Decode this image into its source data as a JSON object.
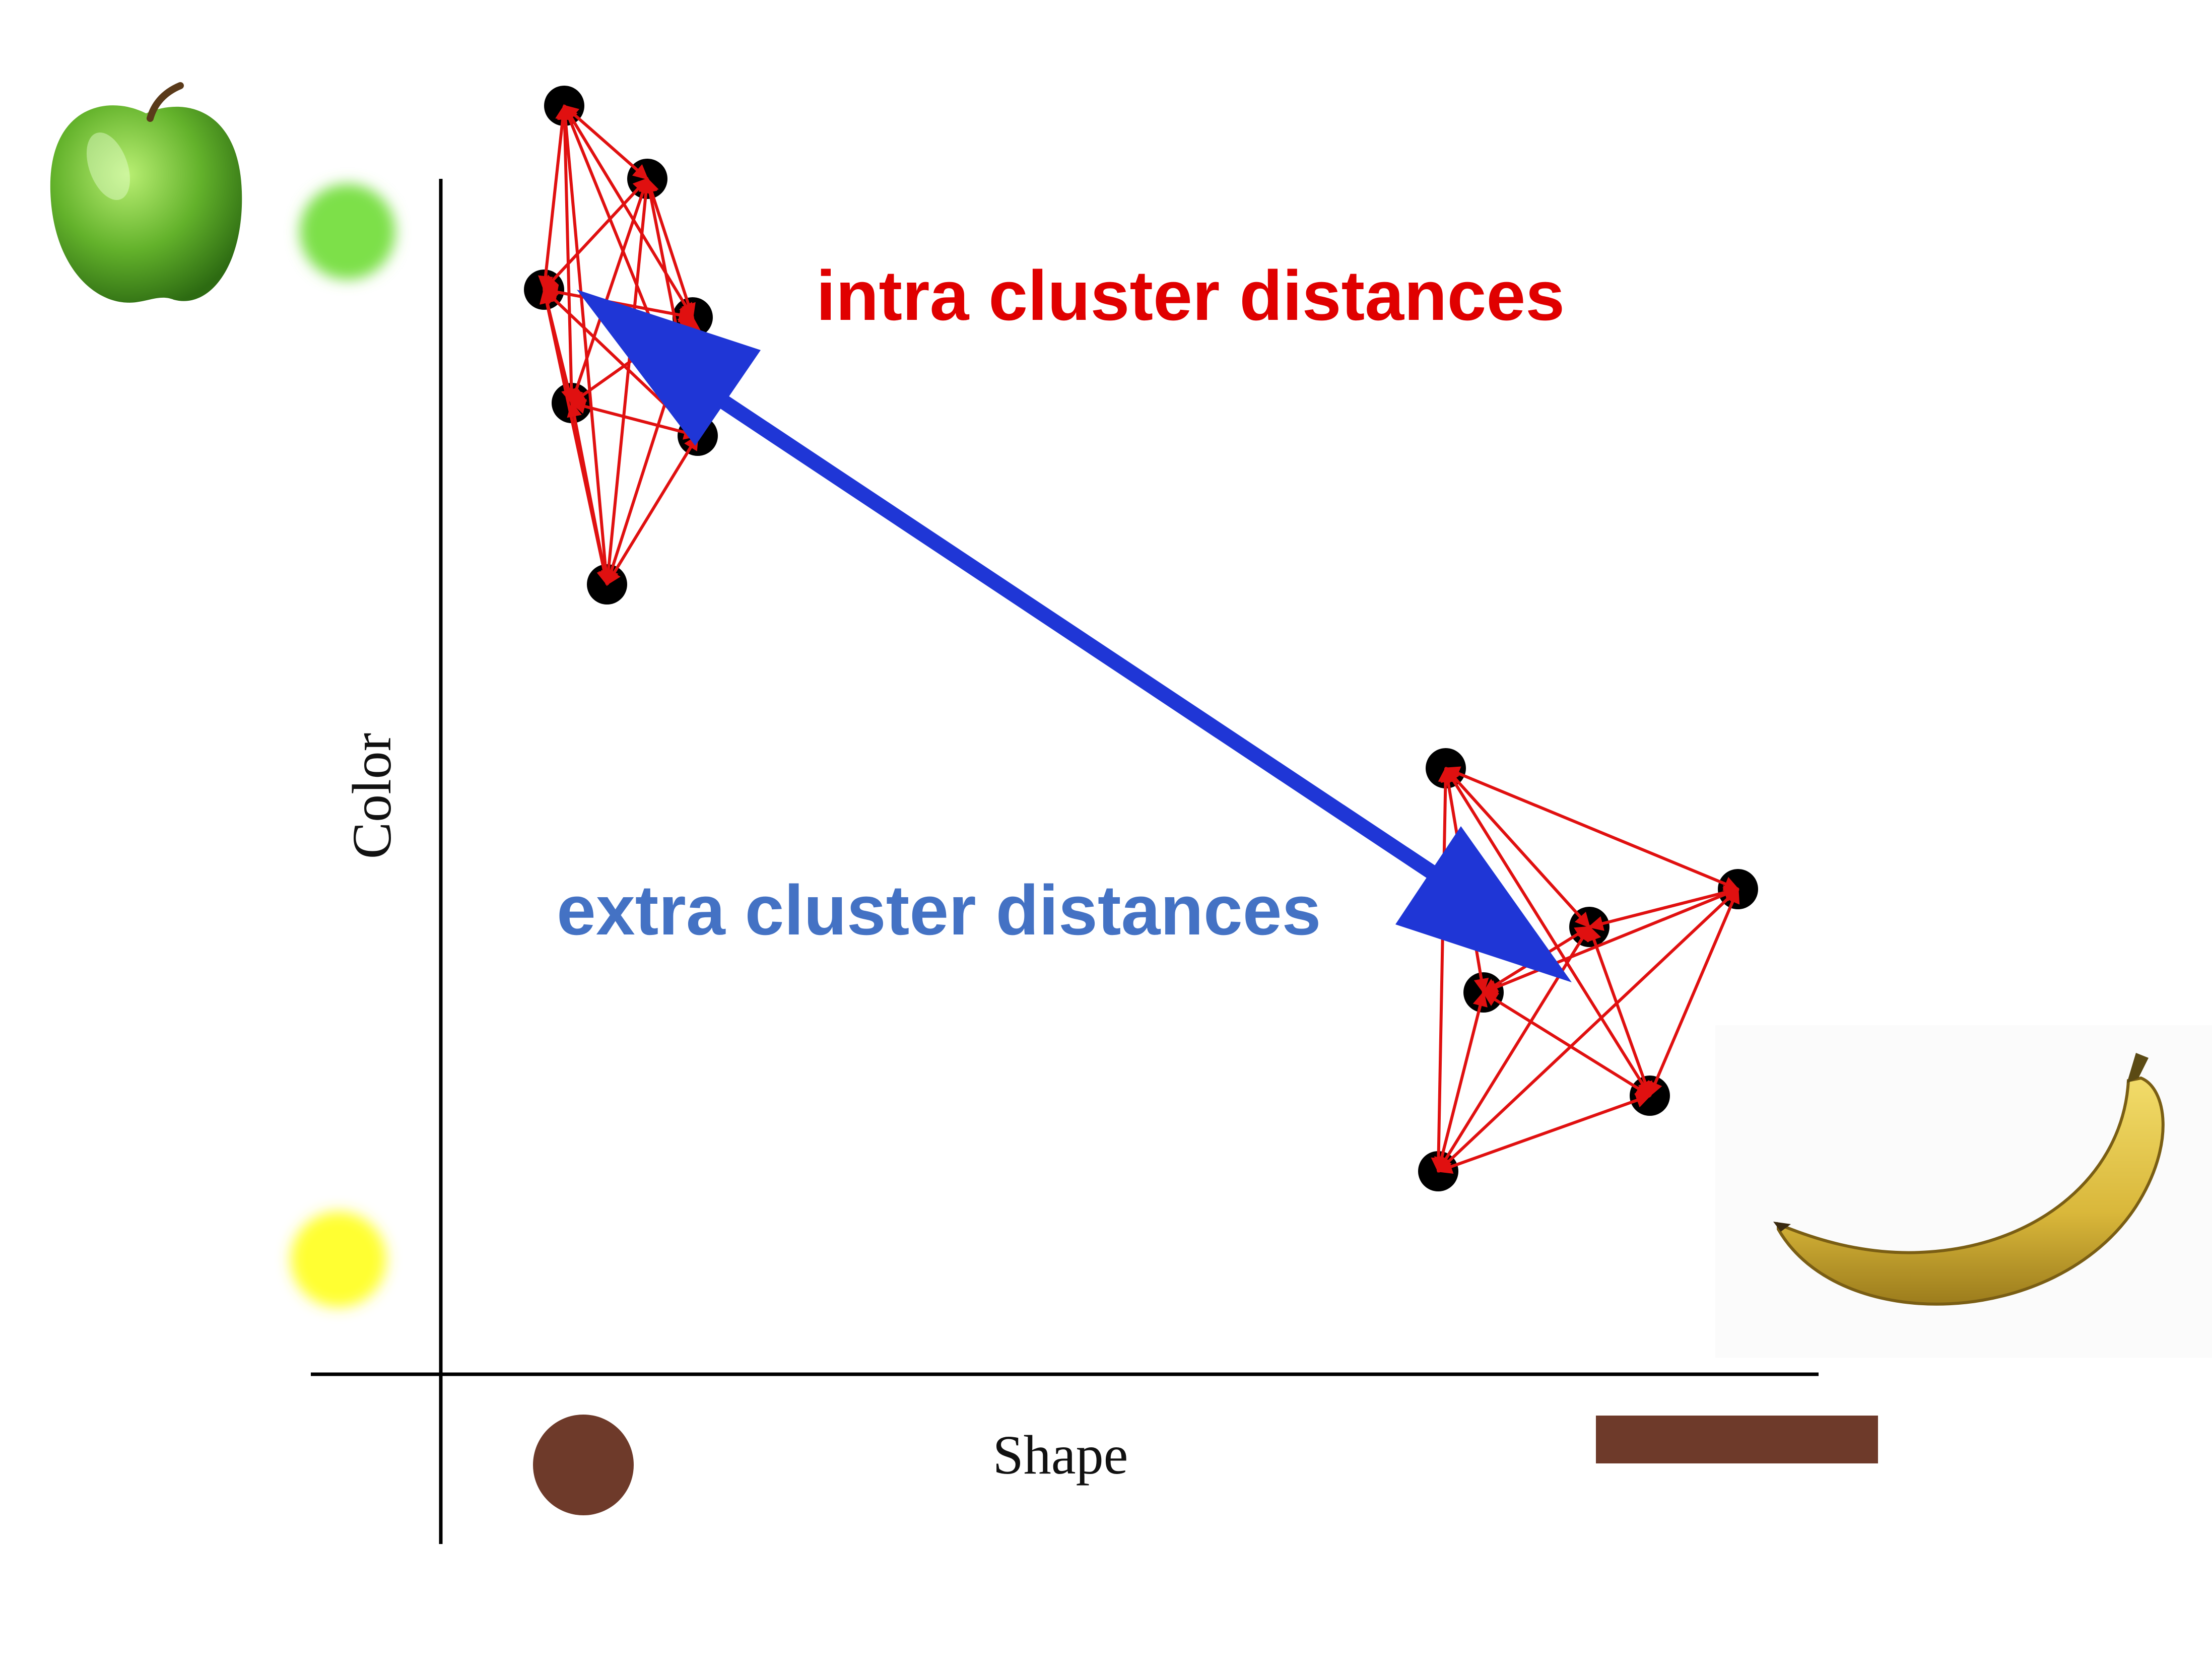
{
  "diagram": {
    "x_axis_label": "Shape",
    "y_axis_label": "Color",
    "intra_label": "intra cluster distances",
    "extra_label": "extra cluster distances"
  },
  "colors": {
    "intra": "#e00000",
    "extra": "#4472c4",
    "big_arrow": "#1f36d6",
    "edge": "#e01010",
    "point": "#000000",
    "axis": "#000000",
    "swatch_green": "#7de04a",
    "swatch_yellow": "#ffff33",
    "swatch_brown": "#6e3a2a"
  },
  "icons": {
    "top_left": "green-apple-icon",
    "bottom_right": "banana-icon"
  }
}
